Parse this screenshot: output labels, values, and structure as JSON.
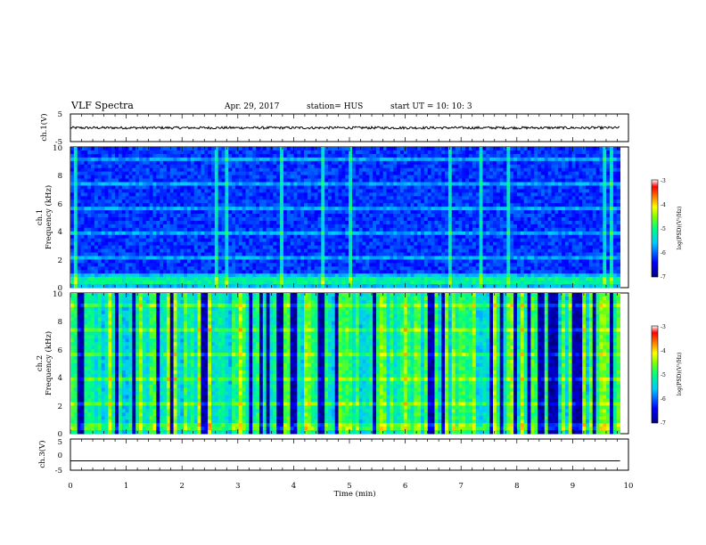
{
  "header": {
    "title": "VLF Spectra",
    "date": "Apr. 29, 2017",
    "station": "station= HUS",
    "start": "start  UT =   10: 10: 3"
  },
  "chart_data": [
    {
      "type": "line",
      "panel": "ch1-waveform",
      "ylabel": "ch.1(V)",
      "ylim": [
        -5,
        5
      ],
      "yticks": [
        "5",
        "-5"
      ],
      "x": [
        0,
        9.85
      ],
      "baseline": 0
    },
    {
      "type": "heatmap",
      "panel": "ch1-spectrogram",
      "ylabel": [
        "ch.1",
        "Frequency (kHz)"
      ],
      "ylim": [
        0,
        10
      ],
      "yticks": [
        "10",
        "8",
        "6",
        "4",
        "2",
        "0"
      ],
      "colorbar": {
        "label": "log(PSD)(V²/Hz)",
        "range": [
          -7,
          -3
        ],
        "ticks": [
          "-3",
          "-4",
          "-5",
          "-6",
          "-7"
        ]
      }
    },
    {
      "type": "heatmap",
      "panel": "ch2-spectrogram",
      "ylabel": [
        "ch.2",
        "Frequency (kHz)"
      ],
      "ylim": [
        0,
        10
      ],
      "yticks": [
        "10",
        "8",
        "6",
        "4",
        "2",
        "0"
      ],
      "colorbar": {
        "label": "log(PSD)(V²/Hz)",
        "range": [
          -7,
          -3
        ],
        "ticks": [
          "-3",
          "-4",
          "-5",
          "-6",
          "-7"
        ]
      }
    },
    {
      "type": "line",
      "panel": "ch3-waveform",
      "ylabel": "ch.3(V)",
      "ylim": [
        -5,
        5
      ],
      "yticks": [
        "5",
        "0",
        "-5"
      ],
      "x": [
        0,
        9.85
      ],
      "baseline": -2
    }
  ],
  "xaxis": {
    "label": "Time (min)",
    "xlim": [
      0,
      10
    ],
    "ticks": [
      "0",
      "1",
      "2",
      "3",
      "4",
      "5",
      "6",
      "7",
      "8",
      "9",
      "10"
    ]
  }
}
